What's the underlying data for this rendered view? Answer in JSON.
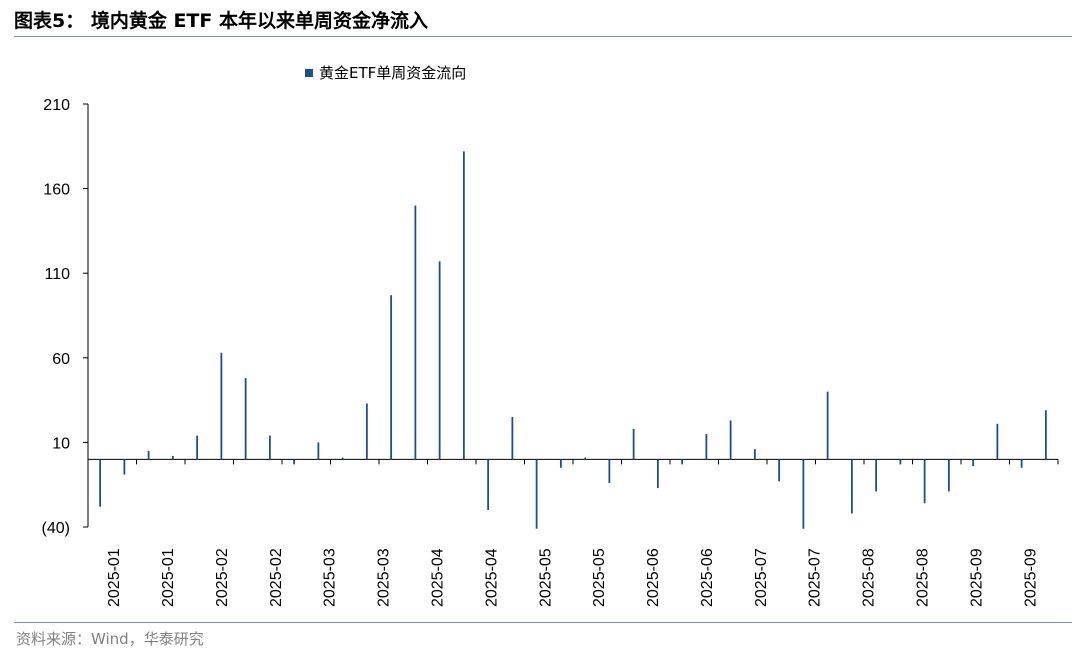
{
  "title": "图表5：  境内黄金 ETF 本年以来单周资金净流入",
  "source": "资料来源：Wind，华泰研究",
  "colors": {
    "bar": "#1f4e8c",
    "rule": "#7f93b4"
  },
  "chart_data": {
    "type": "bar",
    "legend": "黄金ETF单周资金流向",
    "legend_position": "top",
    "grid": false,
    "ylim": [
      -40,
      210
    ],
    "y_ticks": [
      210,
      160,
      110,
      60,
      10,
      -40
    ],
    "y_tick_labels": [
      "210",
      "160",
      "110",
      "60",
      "10",
      "(40)"
    ],
    "x_tick_labels": [
      "2025-01",
      "2025-01",
      "2025-02",
      "2025-02",
      "2025-03",
      "2025-03",
      "2025-04",
      "2025-04",
      "2025-05",
      "2025-05",
      "2025-06",
      "2025-06",
      "2025-07",
      "2025-07",
      "2025-08",
      "2025-08",
      "2025-09",
      "2025-09"
    ],
    "values": [
      -28,
      -9,
      5,
      2,
      14,
      63,
      48,
      14,
      -3,
      10,
      1,
      33,
      97,
      150,
      117,
      182,
      -30,
      25,
      -41,
      -5,
      1,
      -14,
      18,
      -17,
      -3,
      15,
      23,
      6,
      -13,
      -41,
      40,
      -32,
      -19,
      -3,
      -26,
      -19,
      -4,
      21,
      -5,
      29
    ],
    "series": [
      {
        "name": "黄金ETF单周资金流向"
      }
    ]
  }
}
